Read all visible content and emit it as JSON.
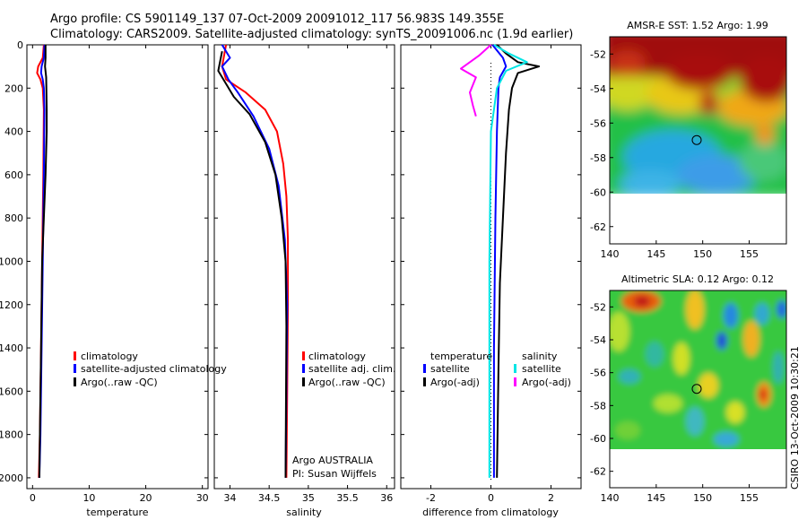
{
  "header": {
    "line1": "Argo profile: CS 5901149_137 07-Oct-2009 20091012_117 56.983S 149.355E",
    "line2": "Climatology: CARS2009. Satellite-adjusted climatology: synTS_20091006.nc (1.9d earlier)"
  },
  "side_label": "CSIRO 13-Oct-2009 10:30:21",
  "profile_panels": [
    {
      "id": "temperature",
      "xlabel": "temperature",
      "xlim": [
        -1,
        31
      ],
      "xticks": [
        "0",
        "10",
        "20",
        "30"
      ],
      "xtick_values": [
        0,
        10,
        20,
        30
      ],
      "ylim": [
        0,
        2050
      ],
      "yticks": [
        "0",
        "200",
        "400",
        "600",
        "800",
        "1000",
        "1200",
        "1400",
        "1600",
        "1800",
        "2000"
      ],
      "ytick_values": [
        0,
        200,
        400,
        600,
        800,
        1000,
        1200,
        1400,
        1600,
        1800,
        2000
      ],
      "legend": [
        {
          "label": "climatology",
          "color": "#ff0000"
        },
        {
          "label": "satellite-adjusted climatology",
          "color": "#0000ff"
        },
        {
          "label": "Argo(..raw -QC)",
          "color": "#000000"
        }
      ],
      "series": [
        {
          "color": "#ff0000",
          "x": [
            2.0,
            1.8,
            1.0,
            0.8,
            1.4,
            1.8,
            2.0,
            1.9,
            1.7,
            1.5,
            1.3,
            1.1
          ],
          "depth": [
            0,
            60,
            100,
            130,
            160,
            200,
            300,
            600,
            1000,
            1400,
            1800,
            2000
          ]
        },
        {
          "color": "#0000ff",
          "x": [
            2.1,
            2.0,
            1.6,
            1.5,
            1.8,
            2.0,
            2.1,
            2.0,
            1.8,
            1.6,
            1.4,
            1.2
          ],
          "depth": [
            0,
            60,
            100,
            130,
            160,
            200,
            300,
            600,
            1000,
            1400,
            1800,
            2000
          ]
        },
        {
          "color": "#000000",
          "x": [
            2.3,
            2.3,
            2.2,
            2.4,
            2.5,
            2.5,
            2.3,
            2.0,
            1.7,
            1.5,
            1.3,
            1.2
          ],
          "depth": [
            0,
            60,
            100,
            150,
            300,
            400,
            600,
            800,
            1000,
            1400,
            1800,
            2000
          ]
        }
      ]
    },
    {
      "id": "salinity",
      "xlabel": "salinity",
      "xlim": [
        33.8,
        36.1
      ],
      "xticks": [
        "34",
        "34.5",
        "35",
        "35.5",
        "36"
      ],
      "xtick_values": [
        34,
        34.5,
        35,
        35.5,
        36
      ],
      "ylim": [
        0,
        2050
      ],
      "ytick_values": [
        0,
        200,
        400,
        600,
        800,
        1000,
        1200,
        1400,
        1600,
        1800,
        2000
      ],
      "legend": [
        {
          "label": "climatology",
          "color": "#ff0000"
        },
        {
          "label": "satellite adj. clim.",
          "color": "#0000ff"
        },
        {
          "label": "Argo(..raw -QC)",
          "color": "#000000"
        }
      ],
      "annotation": [
        "Argo AUSTRALIA",
        "PI: Susan Wijffels"
      ],
      "series": [
        {
          "color": "#ff0000",
          "x": [
            33.95,
            33.9,
            33.95,
            34.2,
            34.45,
            34.6,
            34.68,
            34.72,
            34.74,
            34.74,
            34.73,
            34.72
          ],
          "depth": [
            0,
            100,
            160,
            220,
            300,
            400,
            550,
            700,
            900,
            1200,
            1600,
            2000
          ]
        },
        {
          "color": "#0000ff",
          "x": [
            33.9,
            34.0,
            33.9,
            33.98,
            34.1,
            34.3,
            34.5,
            34.62,
            34.7,
            34.73,
            34.72,
            34.71
          ],
          "depth": [
            0,
            60,
            100,
            160,
            220,
            330,
            480,
            650,
            900,
            1200,
            1600,
            2000
          ]
        },
        {
          "color": "#000000",
          "x": [
            33.9,
            33.85,
            33.95,
            34.05,
            34.25,
            34.45,
            34.58,
            34.66,
            34.71,
            34.72,
            34.71
          ],
          "depth": [
            30,
            120,
            180,
            240,
            320,
            450,
            600,
            800,
            1000,
            1300,
            2000
          ]
        }
      ]
    },
    {
      "id": "difference",
      "xlabel": "difference from climatology",
      "xlim": [
        -3,
        3
      ],
      "xticks": [
        "-2",
        "0",
        "2"
      ],
      "xtick_values": [
        -2,
        0,
        2
      ],
      "ylim": [
        0,
        2050
      ],
      "ytick_values": [
        0,
        200,
        400,
        600,
        800,
        1000,
        1200,
        1400,
        1600,
        1800,
        2000
      ],
      "legend_left_title": "temperature",
      "legend_right_title": "salinity",
      "legend_left": [
        {
          "label": "satellite",
          "color": "#0000ff"
        },
        {
          "label": "Argo(-adj)",
          "color": "#000000"
        }
      ],
      "legend_right": [
        {
          "label": "satellite",
          "color": "#00e5e5"
        },
        {
          "label": "Argo(-adj)",
          "color": "#ff00ff"
        }
      ],
      "series": [
        {
          "color": "#0000ff",
          "x": [
            0.05,
            0.4,
            0.5,
            0.3,
            0.25,
            0.2,
            0.15,
            0.1,
            0.1
          ],
          "depth": [
            0,
            60,
            100,
            150,
            200,
            400,
            800,
            1400,
            2000
          ]
        },
        {
          "color": "#000000",
          "x": [
            0.2,
            0.5,
            0.9,
            1.6,
            0.9,
            0.7,
            0.6,
            0.5,
            0.4,
            0.3,
            0.25,
            0.2
          ],
          "depth": [
            0,
            40,
            80,
            100,
            130,
            200,
            300,
            500,
            800,
            1100,
            1500,
            2000
          ]
        },
        {
          "color": "#00e5e5",
          "x": [
            0.1,
            0.6,
            1.2,
            0.5,
            0.2,
            0.0,
            -0.05,
            -0.05
          ],
          "depth": [
            0,
            40,
            80,
            120,
            200,
            400,
            1000,
            2000
          ]
        },
        {
          "color": "#ff00ff",
          "x": [
            0.0,
            -0.4,
            -1.0,
            -0.5,
            -0.7,
            -0.6,
            -0.5
          ],
          "depth": [
            0,
            50,
            110,
            150,
            220,
            280,
            330
          ]
        }
      ]
    }
  ],
  "maps": [
    {
      "id": "sst",
      "title": "AMSR-E SST: 1.52 Argo: 1.99",
      "xticks": [
        "140",
        "145",
        "150",
        "155"
      ],
      "xtick_values": [
        140,
        145,
        150,
        155
      ],
      "yticks": [
        "-52",
        "-54",
        "-56",
        "-58",
        "-60",
        "-62"
      ],
      "ytick_values": [
        -52,
        -54,
        -56,
        -58,
        -60,
        -62
      ],
      "lon_range": [
        140,
        159
      ],
      "lat_range": [
        -63,
        -51
      ],
      "data_lat_min": -60,
      "marker": {
        "lon": 149.355,
        "lat": -56.983
      }
    },
    {
      "id": "sla",
      "title": "Altimetric SLA: 0.12 Argo: 0.12",
      "xticks": [
        "140",
        "145",
        "150",
        "155"
      ],
      "xtick_values": [
        140,
        145,
        150,
        155
      ],
      "yticks": [
        "-52",
        "-54",
        "-56",
        "-58",
        "-60",
        "-62"
      ],
      "ytick_values": [
        -52,
        -54,
        -56,
        -58,
        -60,
        -62
      ],
      "lon_range": [
        140,
        159
      ],
      "lat_range": [
        -63,
        -51
      ],
      "data_lat_min": -60,
      "marker": {
        "lon": 149.355,
        "lat": -56.983
      }
    }
  ]
}
